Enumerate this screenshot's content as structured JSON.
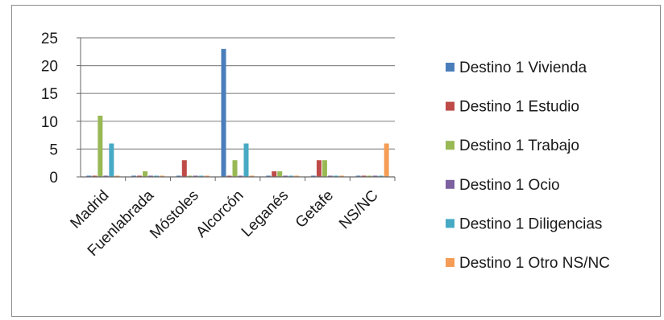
{
  "chart_data": {
    "type": "bar",
    "categories": [
      "Madrid",
      "Fuenlabrada",
      "Móstoles",
      "Alcorcón",
      "Leganés",
      "Getafe",
      "NS/NC"
    ],
    "series": [
      {
        "name": "Destino 1 Vivienda",
        "color": "#4a7ebb",
        "values": [
          0,
          0,
          0,
          23,
          0,
          0,
          0
        ]
      },
      {
        "name": "Destino 1 Estudio",
        "color": "#be4b48",
        "values": [
          0,
          0,
          3,
          0,
          1,
          3,
          0
        ]
      },
      {
        "name": "Destino 1 Trabajo",
        "color": "#98b954",
        "values": [
          11,
          1,
          0,
          3,
          1,
          3,
          0
        ]
      },
      {
        "name": "Destino 1 Ocio",
        "color": "#7d60a0",
        "values": [
          0,
          0,
          0,
          0,
          0,
          0,
          0
        ]
      },
      {
        "name": "Destino 1 Diligencias",
        "color": "#46aac5",
        "values": [
          6,
          0,
          0,
          6,
          0,
          0,
          0
        ]
      },
      {
        "name": "Destino 1 Otro NS/NC",
        "color": "#f59d56",
        "values": [
          0,
          0,
          0,
          0,
          0,
          0,
          6
        ]
      }
    ],
    "y_ticks": [
      "0",
      "5",
      "10",
      "15",
      "20",
      "25"
    ],
    "ylim": [
      0,
      25
    ],
    "grid": true,
    "legend_position": "right"
  }
}
